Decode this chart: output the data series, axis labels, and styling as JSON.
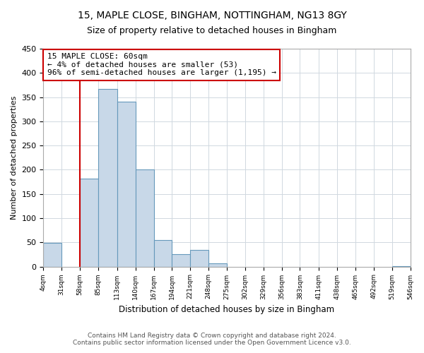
{
  "title": "15, MAPLE CLOSE, BINGHAM, NOTTINGHAM, NG13 8GY",
  "subtitle": "Size of property relative to detached houses in Bingham",
  "xlabel": "Distribution of detached houses by size in Bingham",
  "ylabel": "Number of detached properties",
  "bin_edges": [
    4,
    31,
    58,
    85,
    113,
    140,
    167,
    194,
    221,
    248,
    275,
    302,
    329,
    356,
    383,
    411,
    438,
    465,
    492,
    519,
    546
  ],
  "bin_labels": [
    "4sqm",
    "31sqm",
    "58sqm",
    "85sqm",
    "113sqm",
    "140sqm",
    "167sqm",
    "194sqm",
    "221sqm",
    "248sqm",
    "275sqm",
    "302sqm",
    "329sqm",
    "356sqm",
    "383sqm",
    "411sqm",
    "438sqm",
    "465sqm",
    "492sqm",
    "519sqm",
    "546sqm"
  ],
  "counts": [
    49,
    0,
    181,
    367,
    341,
    200,
    55,
    26,
    34,
    6,
    0,
    0,
    0,
    0,
    0,
    0,
    0,
    0,
    0,
    1
  ],
  "bar_color": "#c8d8e8",
  "bar_edge_color": "#6699bb",
  "property_line_x": 58,
  "property_line_color": "#cc0000",
  "ylim": [
    0,
    450
  ],
  "yticks": [
    0,
    50,
    100,
    150,
    200,
    250,
    300,
    350,
    400,
    450
  ],
  "annotation_line1": "15 MAPLE CLOSE: 60sqm",
  "annotation_line2": "← 4% of detached houses are smaller (53)",
  "annotation_line3": "96% of semi-detached houses are larger (1,195) →",
  "annotation_box_color": "#ffffff",
  "annotation_box_edge": "#cc0000",
  "footer1": "Contains HM Land Registry data © Crown copyright and database right 2024.",
  "footer2": "Contains public sector information licensed under the Open Government Licence v3.0.",
  "bg_color": "#ffffff",
  "grid_color": "#d0d8e0"
}
